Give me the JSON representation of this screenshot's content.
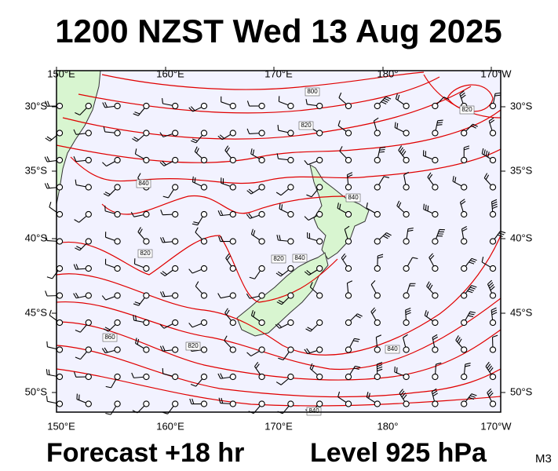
{
  "header": {
    "title": "1200 NZST Wed 13 Aug 2025"
  },
  "map": {
    "top_lon_labels": [
      "150°E",
      "160°E",
      "170°E",
      "180°",
      "170°W"
    ],
    "bottom_lon_labels": [
      "150°E",
      "160°E",
      "170°E",
      "180°",
      "170°W"
    ],
    "left_lat_labels": [
      "30°S",
      "35°S",
      "40°S",
      "45°S",
      "50°S"
    ],
    "right_lat_labels": [
      "30°S",
      "35°S",
      "40°S",
      "45°S",
      "50°S"
    ],
    "contour_labels": [
      "800",
      "820",
      "820",
      "840",
      "840",
      "820",
      "840",
      "860",
      "820",
      "840",
      "840",
      "820"
    ]
  },
  "footer": {
    "forecast": "Forecast +18 hr",
    "level": "Level 925 hPa",
    "code": "M3"
  }
}
